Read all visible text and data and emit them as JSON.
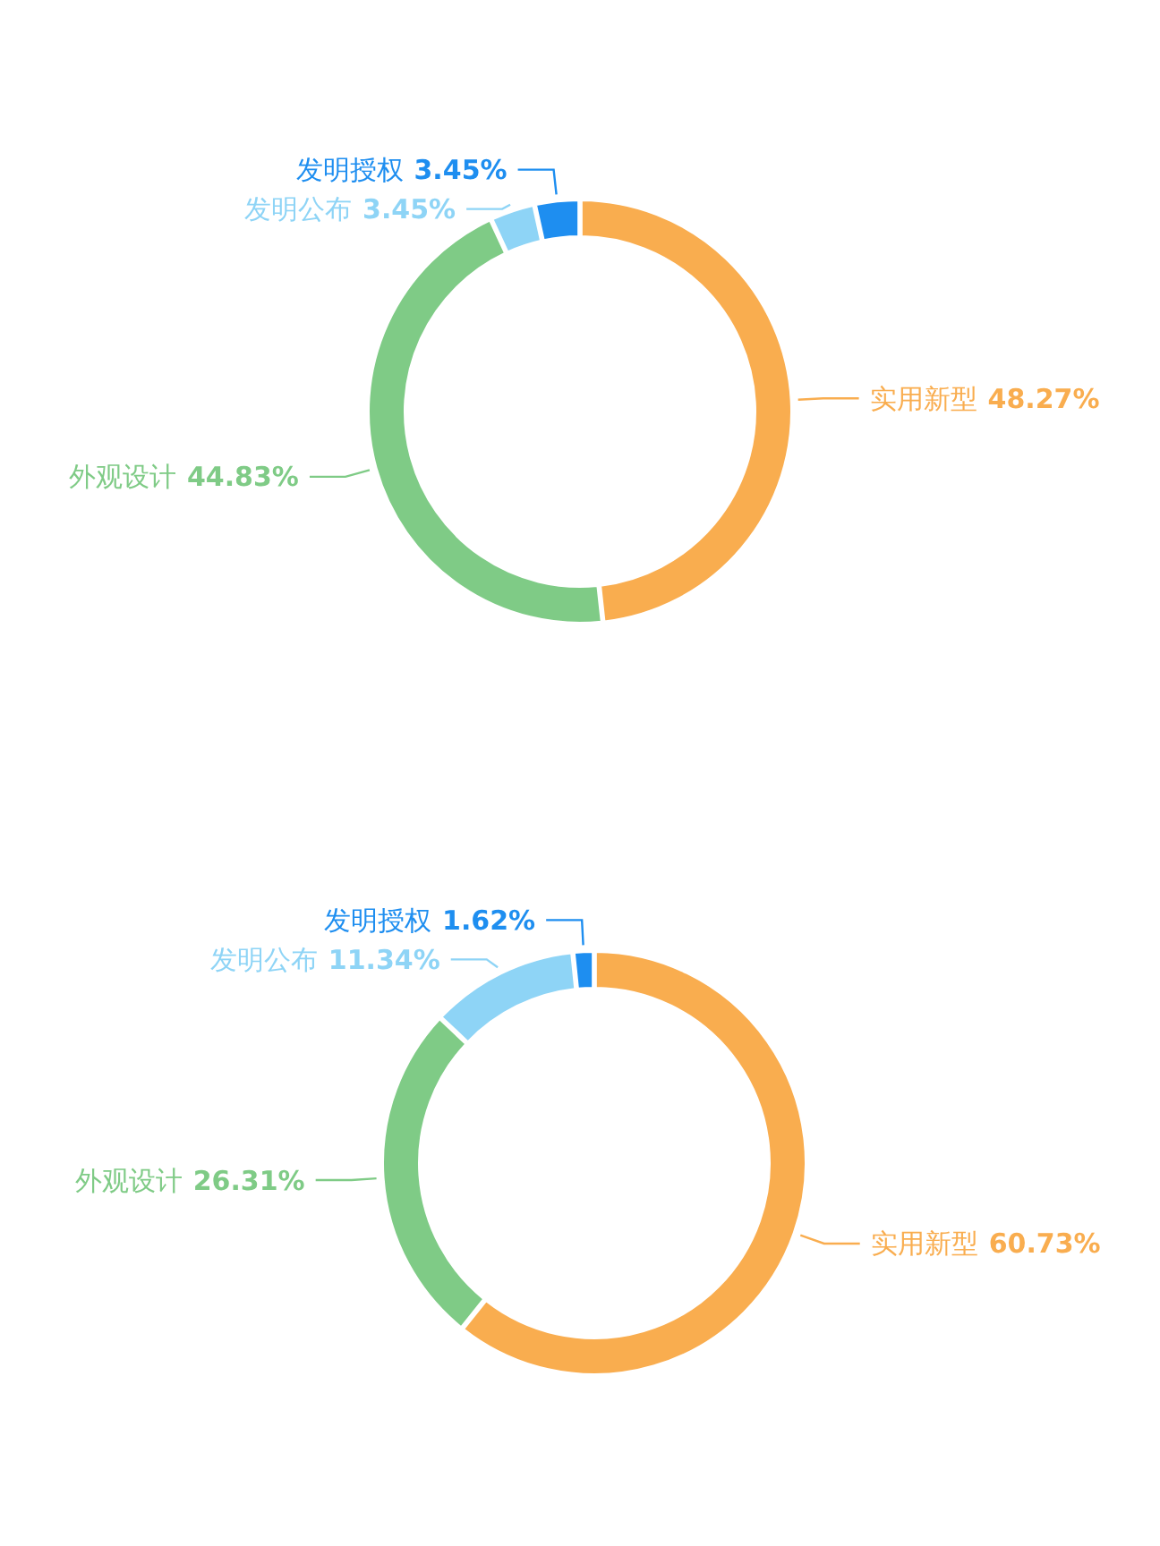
{
  "chart_data": [
    {
      "type": "donut",
      "categories": [
        "实用新型",
        "外观设计",
        "发明公布",
        "发明授权"
      ],
      "values": [
        48.27,
        44.83,
        3.45,
        3.45
      ],
      "colors": [
        "#f9ad4f",
        "#7fcb86",
        "#8ed4f6",
        "#1e8ef0"
      ],
      "value_labels": [
        "48.27%",
        "44.83%",
        "3.45%",
        "3.45%"
      ]
    },
    {
      "type": "donut",
      "categories": [
        "实用新型",
        "外观设计",
        "发明公布",
        "发明授权"
      ],
      "values": [
        60.73,
        26.31,
        11.34,
        1.62
      ],
      "colors": [
        "#f9ad4f",
        "#7fcb86",
        "#8ed4f6",
        "#1e8ef0"
      ],
      "value_labels": [
        "60.73%",
        "26.31%",
        "11.34%",
        "1.62%"
      ]
    }
  ]
}
